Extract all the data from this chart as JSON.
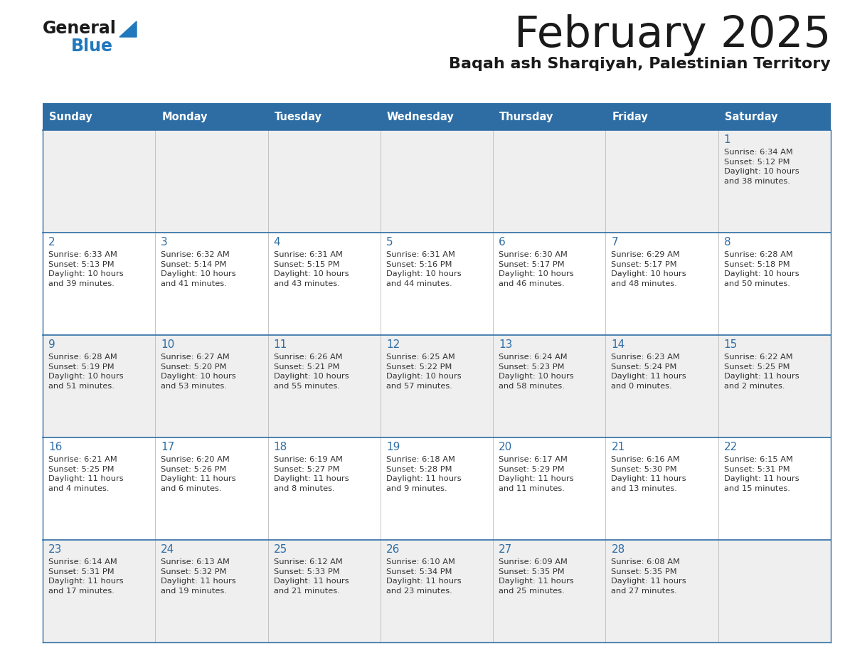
{
  "title": "February 2025",
  "subtitle": "Baqah ash Sharqiyah, Palestinian Territory",
  "header_bg": "#2E6DA4",
  "header_text_color": "#FFFFFF",
  "cell_bg_even": "#EFEFEF",
  "cell_bg_odd": "#FFFFFF",
  "day_headers": [
    "Sunday",
    "Monday",
    "Tuesday",
    "Wednesday",
    "Thursday",
    "Friday",
    "Saturday"
  ],
  "title_color": "#1a1a1a",
  "subtitle_color": "#1a1a1a",
  "day_number_color": "#2E6DA4",
  "cell_text_color": "#333333",
  "grid_line_color": "#2E6DA4",
  "logo_general_color": "#1a1a1a",
  "logo_blue_color": "#2178BC",
  "logo_triangle_color": "#2178BC",
  "calendar_data": [
    [
      null,
      null,
      null,
      null,
      null,
      null,
      {
        "day": 1,
        "sunrise": "6:34 AM",
        "sunset": "5:12 PM",
        "daylight": "10 hours\nand 38 minutes."
      }
    ],
    [
      {
        "day": 2,
        "sunrise": "6:33 AM",
        "sunset": "5:13 PM",
        "daylight": "10 hours\nand 39 minutes."
      },
      {
        "day": 3,
        "sunrise": "6:32 AM",
        "sunset": "5:14 PM",
        "daylight": "10 hours\nand 41 minutes."
      },
      {
        "day": 4,
        "sunrise": "6:31 AM",
        "sunset": "5:15 PM",
        "daylight": "10 hours\nand 43 minutes."
      },
      {
        "day": 5,
        "sunrise": "6:31 AM",
        "sunset": "5:16 PM",
        "daylight": "10 hours\nand 44 minutes."
      },
      {
        "day": 6,
        "sunrise": "6:30 AM",
        "sunset": "5:17 PM",
        "daylight": "10 hours\nand 46 minutes."
      },
      {
        "day": 7,
        "sunrise": "6:29 AM",
        "sunset": "5:17 PM",
        "daylight": "10 hours\nand 48 minutes."
      },
      {
        "day": 8,
        "sunrise": "6:28 AM",
        "sunset": "5:18 PM",
        "daylight": "10 hours\nand 50 minutes."
      }
    ],
    [
      {
        "day": 9,
        "sunrise": "6:28 AM",
        "sunset": "5:19 PM",
        "daylight": "10 hours\nand 51 minutes."
      },
      {
        "day": 10,
        "sunrise": "6:27 AM",
        "sunset": "5:20 PM",
        "daylight": "10 hours\nand 53 minutes."
      },
      {
        "day": 11,
        "sunrise": "6:26 AM",
        "sunset": "5:21 PM",
        "daylight": "10 hours\nand 55 minutes."
      },
      {
        "day": 12,
        "sunrise": "6:25 AM",
        "sunset": "5:22 PM",
        "daylight": "10 hours\nand 57 minutes."
      },
      {
        "day": 13,
        "sunrise": "6:24 AM",
        "sunset": "5:23 PM",
        "daylight": "10 hours\nand 58 minutes."
      },
      {
        "day": 14,
        "sunrise": "6:23 AM",
        "sunset": "5:24 PM",
        "daylight": "11 hours\nand 0 minutes."
      },
      {
        "day": 15,
        "sunrise": "6:22 AM",
        "sunset": "5:25 PM",
        "daylight": "11 hours\nand 2 minutes."
      }
    ],
    [
      {
        "day": 16,
        "sunrise": "6:21 AM",
        "sunset": "5:25 PM",
        "daylight": "11 hours\nand 4 minutes."
      },
      {
        "day": 17,
        "sunrise": "6:20 AM",
        "sunset": "5:26 PM",
        "daylight": "11 hours\nand 6 minutes."
      },
      {
        "day": 18,
        "sunrise": "6:19 AM",
        "sunset": "5:27 PM",
        "daylight": "11 hours\nand 8 minutes."
      },
      {
        "day": 19,
        "sunrise": "6:18 AM",
        "sunset": "5:28 PM",
        "daylight": "11 hours\nand 9 minutes."
      },
      {
        "day": 20,
        "sunrise": "6:17 AM",
        "sunset": "5:29 PM",
        "daylight": "11 hours\nand 11 minutes."
      },
      {
        "day": 21,
        "sunrise": "6:16 AM",
        "sunset": "5:30 PM",
        "daylight": "11 hours\nand 13 minutes."
      },
      {
        "day": 22,
        "sunrise": "6:15 AM",
        "sunset": "5:31 PM",
        "daylight": "11 hours\nand 15 minutes."
      }
    ],
    [
      {
        "day": 23,
        "sunrise": "6:14 AM",
        "sunset": "5:31 PM",
        "daylight": "11 hours\nand 17 minutes."
      },
      {
        "day": 24,
        "sunrise": "6:13 AM",
        "sunset": "5:32 PM",
        "daylight": "11 hours\nand 19 minutes."
      },
      {
        "day": 25,
        "sunrise": "6:12 AM",
        "sunset": "5:33 PM",
        "daylight": "11 hours\nand 21 minutes."
      },
      {
        "day": 26,
        "sunrise": "6:10 AM",
        "sunset": "5:34 PM",
        "daylight": "11 hours\nand 23 minutes."
      },
      {
        "day": 27,
        "sunrise": "6:09 AM",
        "sunset": "5:35 PM",
        "daylight": "11 hours\nand 25 minutes."
      },
      {
        "day": 28,
        "sunrise": "6:08 AM",
        "sunset": "5:35 PM",
        "daylight": "11 hours\nand 27 minutes."
      },
      null
    ]
  ]
}
